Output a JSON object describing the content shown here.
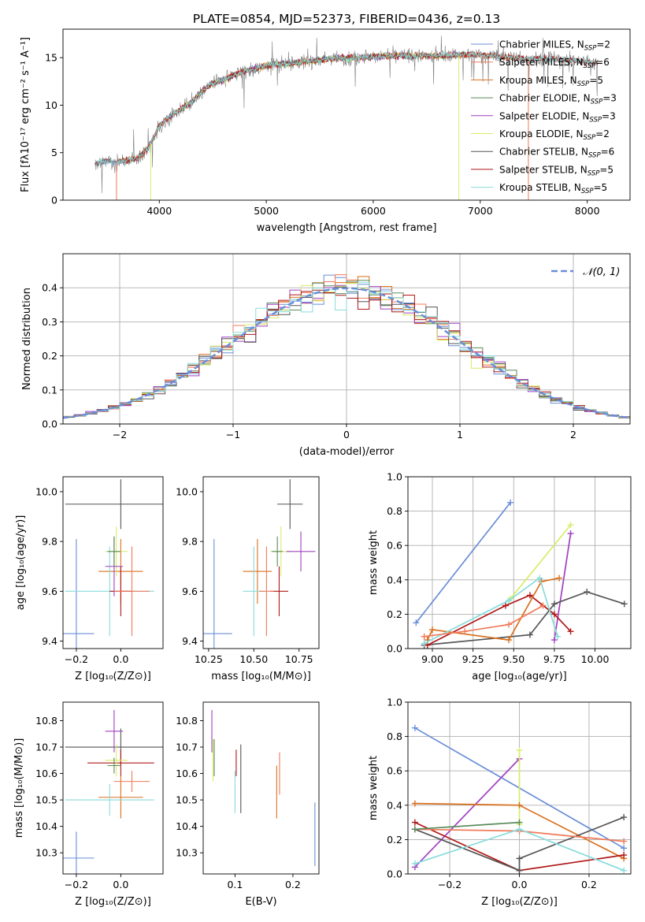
{
  "figure_title": "PLATE=0854, MJD=52373, FIBERID=0436, z=0.13",
  "colors": {
    "chabrier_miles": "#6a8ed8",
    "salpeter_miles": "#f07a5a",
    "kroupa_miles": "#d9701e",
    "chabrier_elodie": "#5a8a5a",
    "salpeter_elodie": "#a040c0",
    "kroupa_elodie": "#d8ec6a",
    "chabrier_stelib": "#555555",
    "salpeter_stelib": "#b01818",
    "kroupa_stelib": "#88dcdc",
    "normal": "#6a8ed8",
    "data_spectrum": "#7f7f7f",
    "grid": "#b0b0b0"
  },
  "chart_data": [
    {
      "id": "spectrum",
      "type": "line",
      "xlabel": "wavelength [Angstrom, rest frame]",
      "ylabel": "Flux [fλ10⁻¹⁷ erg cm⁻² s⁻¹ A⁻¹]",
      "xlim": [
        3100,
        8400
      ],
      "ylim": [
        0,
        18
      ],
      "xticks": [
        4000,
        5000,
        6000,
        7000,
        8000
      ],
      "yticks": [
        0,
        5,
        10,
        15
      ],
      "grid": false,
      "legend_placement": "upper-right",
      "continuum": {
        "x": [
          3400,
          3500,
          3600,
          3700,
          3800,
          3900,
          4000,
          4100,
          4200,
          4300,
          4400,
          4500,
          4600,
          4700,
          4800,
          4900,
          5000,
          5200,
          5400,
          5600,
          5800,
          6000,
          6200,
          6400,
          6600,
          6800,
          7000,
          7200,
          7400,
          7600,
          7800,
          8000,
          8100
        ],
        "y": [
          3.8,
          4.2,
          4.0,
          4.2,
          4.4,
          5.5,
          7.8,
          8.8,
          9.6,
          10.3,
          11.5,
          12.3,
          12.6,
          13.2,
          13.6,
          13.8,
          14.2,
          14.4,
          14.6,
          14.9,
          15.0,
          15.1,
          15.2,
          15.2,
          15.2,
          15.3,
          15.3,
          15.1,
          14.9,
          14.9,
          14.8,
          14.6,
          14.5
        ]
      },
      "series": [
        {
          "name": "Chabrier MILES, Nₛₛₚ=2",
          "label_main": "Chabrier MILES, N",
          "label_sub": "SSP",
          "label_tail": "=2",
          "color_key": "chabrier_miles",
          "x_range": [
            3400,
            7400
          ]
        },
        {
          "name": "Salpeter MILES, Nₛₛₚ=6",
          "label_main": "Salpeter MILES, N",
          "label_sub": "SSP",
          "label_tail": "=6",
          "color_key": "salpeter_miles",
          "x_range": [
            3600,
            7450
          ]
        },
        {
          "name": "Kroupa MILES, Nₛₛₚ=5",
          "label_main": "Kroupa MILES, N",
          "label_sub": "SSP",
          "label_tail": "=5",
          "color_key": "kroupa_miles",
          "x_range": [
            3600,
            7400
          ]
        },
        {
          "name": "Chabrier ELODIE, Nₛₛₚ=3",
          "label_main": "Chabrier ELODIE, N",
          "label_sub": "SSP",
          "label_tail": "=3",
          "color_key": "chabrier_elodie",
          "x_range": [
            3900,
            6800
          ]
        },
        {
          "name": "Salpeter ELODIE, Nₛₛₚ=3",
          "label_main": "Salpeter ELODIE, N",
          "label_sub": "SSP",
          "label_tail": "=3",
          "color_key": "salpeter_elodie",
          "x_range": [
            3900,
            6800
          ]
        },
        {
          "name": "Kroupa ELODIE, Nₛₛₚ=2",
          "label_main": "Kroupa ELODIE, N",
          "label_sub": "SSP",
          "label_tail": "=2",
          "color_key": "kroupa_elodie",
          "x_range": [
            3900,
            6800
          ]
        },
        {
          "name": "Chabrier STELIB, Nₛₛₚ=6",
          "label_main": "Chabrier STELIB, N",
          "label_sub": "SSP",
          "label_tail": "=6",
          "color_key": "chabrier_stelib",
          "x_range": [
            3400,
            8100
          ]
        },
        {
          "name": "Salpeter STELIB, Nₛₛₚ=5",
          "label_main": "Salpeter STELIB, N",
          "label_sub": "SSP",
          "label_tail": "=5",
          "color_key": "salpeter_stelib",
          "x_range": [
            3400,
            8100
          ]
        },
        {
          "name": "Kroupa STELIB, Nₛₛₚ=5",
          "label_main": "Kroupa STELIB, N",
          "label_sub": "SSP",
          "label_tail": "=5",
          "color_key": "kroupa_stelib",
          "x_range": [
            3400,
            8100
          ]
        }
      ]
    },
    {
      "id": "residuals",
      "type": "line",
      "xlabel": "(data-model)/error",
      "ylabel": "Normed distribution",
      "xlim": [
        -2.5,
        2.5
      ],
      "ylim": [
        0,
        0.5
      ],
      "xticks": [
        -2,
        -1,
        0,
        1,
        2
      ],
      "xtick_labels": [
        "−2",
        "−1",
        "0",
        "1",
        "2"
      ],
      "yticks": [
        0.0,
        0.1,
        0.2,
        0.3,
        0.4
      ],
      "ytick_labels": [
        "0.0",
        "0.1",
        "0.2",
        "0.3",
        "0.4"
      ],
      "grid": true,
      "legend_placement": "upper-right",
      "legend": [
        "𝒩(0, 1)"
      ],
      "bin_width": 0.1,
      "gaussian": {
        "mean": 0,
        "sigma": 1,
        "style": "dashed"
      }
    },
    {
      "id": "age_vs_Z",
      "type": "scatter",
      "xlabel": "Z [log₁₀(Z/Z⊙)]",
      "ylabel": "age  [log₁₀(age/yr)]",
      "xlim": [
        -0.26,
        0.19
      ],
      "ylim": [
        9.37,
        10.06
      ],
      "xticks": [
        -0.2,
        0.0
      ],
      "xtick_labels": [
        "−0.2",
        "0.0"
      ],
      "yticks": [
        9.4,
        9.6,
        9.8,
        10.0
      ],
      "ytick_labels": [
        "9.4",
        "9.6",
        "9.8",
        "10.0"
      ],
      "points": [
        {
          "color_key": "chabrier_stelib",
          "x": 0.0,
          "xerr": 0.25,
          "y": 9.95,
          "yerr": 0.1
        },
        {
          "color_key": "chabrier_miles",
          "x": -0.2,
          "xerr": 0.08,
          "y": 9.43,
          "yerr": 0.38
        },
        {
          "color_key": "kroupa_miles",
          "x": 0.0,
          "xerr": 0.1,
          "y": 9.68,
          "yerr": 0.13
        },
        {
          "color_key": "kroupa_stelib",
          "x": -0.05,
          "xerr": 0.2,
          "y": 9.6,
          "yerr": 0.18
        },
        {
          "color_key": "salpeter_stelib",
          "x": 0.0,
          "xerr": 0.05,
          "y": 9.6,
          "yerr": 0.1
        },
        {
          "color_key": "kroupa_elodie",
          "x": -0.02,
          "xerr": 0.05,
          "y": 9.76,
          "yerr": 0.1
        },
        {
          "color_key": "salpeter_elodie",
          "x": -0.03,
          "xerr": 0.04,
          "y": 9.7,
          "yerr": 0.12
        },
        {
          "color_key": "salpeter_miles",
          "x": 0.05,
          "xerr": 0.08,
          "y": 9.6,
          "yerr": 0.18
        },
        {
          "color_key": "chabrier_elodie",
          "x": -0.03,
          "xerr": 0.03,
          "y": 9.76,
          "yerr": 0.06
        }
      ]
    },
    {
      "id": "age_vs_mass",
      "type": "scatter",
      "xlabel": "mass [log₁₀(M/M⊙)]",
      "ylabel": "",
      "xlim": [
        10.22,
        10.86
      ],
      "ylim": [
        9.37,
        10.06
      ],
      "xticks": [
        10.25,
        10.5,
        10.75
      ],
      "xtick_labels": [
        "10.25",
        "10.50",
        "10.75"
      ],
      "yticks": [
        9.4,
        9.6,
        9.8,
        10.0
      ],
      "ytick_labels": [
        "9.4",
        "9.6",
        "9.8",
        "10.0"
      ],
      "points": [
        {
          "color_key": "chabrier_stelib",
          "x": 10.7,
          "xerr": 0.07,
          "y": 9.95,
          "yerr": 0.1
        },
        {
          "color_key": "chabrier_miles",
          "x": 10.28,
          "xerr": 0.1,
          "y": 9.43,
          "yerr": 0.38
        },
        {
          "color_key": "kroupa_miles",
          "x": 10.52,
          "xerr": 0.08,
          "y": 9.68,
          "yerr": 0.13
        },
        {
          "color_key": "kroupa_stelib",
          "x": 10.5,
          "xerr": 0.06,
          "y": 9.6,
          "yerr": 0.18
        },
        {
          "color_key": "salpeter_stelib",
          "x": 10.64,
          "xerr": 0.05,
          "y": 9.6,
          "yerr": 0.1
        },
        {
          "color_key": "kroupa_elodie",
          "x": 10.65,
          "xerr": 0.06,
          "y": 9.76,
          "yerr": 0.1
        },
        {
          "color_key": "salpeter_elodie",
          "x": 10.76,
          "xerr": 0.08,
          "y": 9.76,
          "yerr": 0.08
        },
        {
          "color_key": "salpeter_miles",
          "x": 10.57,
          "xerr": 0.04,
          "y": 9.6,
          "yerr": 0.18
        },
        {
          "color_key": "chabrier_elodie",
          "x": 10.63,
          "xerr": 0.03,
          "y": 9.76,
          "yerr": 0.06
        }
      ]
    },
    {
      "id": "massweight_vs_age",
      "type": "line",
      "xlabel": "age  [log₁₀(age/yr)]",
      "ylabel": "mass weight",
      "xlim": [
        8.85,
        10.22
      ],
      "ylim": [
        0,
        1.0
      ],
      "xticks": [
        9.0,
        9.25,
        9.5,
        9.75,
        10.0
      ],
      "xtick_labels": [
        "9.00",
        "9.25",
        "9.50",
        "9.75",
        "10.00"
      ],
      "yticks": [
        0.0,
        0.2,
        0.4,
        0.6,
        0.8,
        1.0
      ],
      "ytick_labels": [
        "0.0",
        "0.2",
        "0.4",
        "0.6",
        "0.8",
        "1.0"
      ],
      "grid": true,
      "series": [
        {
          "color_key": "chabrier_miles",
          "x": [
            8.9,
            9.48
          ],
          "y": [
            0.15,
            0.85
          ]
        },
        {
          "color_key": "kroupa_elodie",
          "x": [
            9.48,
            9.85
          ],
          "y": [
            0.29,
            0.72
          ]
        },
        {
          "color_key": "salpeter_elodie",
          "x": [
            9.75,
            9.85
          ],
          "y": [
            0.05,
            0.67
          ]
        },
        {
          "color_key": "chabrier_stelib",
          "x": [
            8.95,
            9.6,
            9.75,
            9.95,
            10.18
          ],
          "y": [
            0.02,
            0.08,
            0.26,
            0.33,
            0.26
          ]
        },
        {
          "color_key": "salpeter_stelib",
          "x": [
            8.97,
            9.45,
            9.6,
            9.75,
            9.85
          ],
          "y": [
            0.02,
            0.25,
            0.31,
            0.2,
            0.1
          ]
        },
        {
          "color_key": "kroupa_miles",
          "x": [
            8.97,
            9.0,
            9.47,
            9.67,
            9.78
          ],
          "y": [
            0.05,
            0.11,
            0.05,
            0.39,
            0.41
          ]
        },
        {
          "color_key": "kroupa_stelib",
          "x": [
            8.95,
            9.47,
            9.66,
            9.77
          ],
          "y": [
            0.03,
            0.28,
            0.41,
            0.07
          ]
        },
        {
          "color_key": "salpeter_miles",
          "x": [
            8.95,
            9.2,
            9.47,
            9.68
          ],
          "y": [
            0.07,
            0.1,
            0.14,
            0.25
          ]
        }
      ]
    },
    {
      "id": "mass_vs_Z",
      "type": "scatter",
      "xlabel": "Z [log₁₀(Z/Z⊙)]",
      "ylabel": "mass [log₁₀(M/M⊙)]",
      "xlim": [
        -0.26,
        0.19
      ],
      "ylim": [
        10.22,
        10.87
      ],
      "xticks": [
        -0.2,
        0.0
      ],
      "xtick_labels": [
        "−0.2",
        "0.0"
      ],
      "yticks": [
        10.3,
        10.4,
        10.5,
        10.6,
        10.7,
        10.8
      ],
      "ytick_labels": [
        "10.3",
        "10.4",
        "10.5",
        "10.6",
        "10.7",
        "10.8"
      ],
      "points": [
        {
          "color_key": "chabrier_stelib",
          "x": 0.0,
          "xerr": 0.25,
          "y": 10.7,
          "yerr": 0.07
        },
        {
          "color_key": "chabrier_miles",
          "x": -0.2,
          "xerr": 0.08,
          "y": 10.28,
          "yerr": 0.1
        },
        {
          "color_key": "kroupa_miles",
          "x": 0.0,
          "xerr": 0.1,
          "y": 10.51,
          "yerr": 0.08
        },
        {
          "color_key": "kroupa_stelib",
          "x": -0.05,
          "xerr": 0.2,
          "y": 10.5,
          "yerr": 0.06
        },
        {
          "color_key": "salpeter_stelib",
          "x": 0.0,
          "xerr": 0.15,
          "y": 10.64,
          "yerr": 0.05
        },
        {
          "color_key": "kroupa_elodie",
          "x": -0.02,
          "xerr": 0.05,
          "y": 10.65,
          "yerr": 0.06
        },
        {
          "color_key": "salpeter_elodie",
          "x": -0.03,
          "xerr": 0.04,
          "y": 10.76,
          "yerr": 0.08
        },
        {
          "color_key": "salpeter_miles",
          "x": 0.05,
          "xerr": 0.08,
          "y": 10.57,
          "yerr": 0.04
        },
        {
          "color_key": "chabrier_elodie",
          "x": -0.03,
          "xerr": 0.03,
          "y": 10.63,
          "yerr": 0.03
        }
      ]
    },
    {
      "id": "mass_vs_ebv",
      "type": "scatter",
      "xlabel": "E(B-V)",
      "ylabel": "",
      "xlim": [
        0.045,
        0.245
      ],
      "ylim": [
        10.22,
        10.87
      ],
      "xticks": [
        0.1,
        0.2
      ],
      "xtick_labels": [
        "0.1",
        "0.2"
      ],
      "yticks": [
        10.3,
        10.4,
        10.5,
        10.6,
        10.7,
        10.8
      ],
      "ytick_labels": [
        "10.3",
        "10.4",
        "10.5",
        "10.6",
        "10.7",
        "10.8"
      ],
      "points": [
        {
          "color_key": "salpeter_elodie",
          "x": 0.06,
          "y": 10.76,
          "yerr": 0.08
        },
        {
          "color_key": "kroupa_elodie",
          "x": 0.062,
          "y": 10.65,
          "yerr": 0.08
        },
        {
          "color_key": "chabrier_elodie",
          "x": 0.064,
          "y": 10.66,
          "yerr": 0.07
        },
        {
          "color_key": "kroupa_stelib",
          "x": 0.1,
          "y": 10.53,
          "yerr": 0.08
        },
        {
          "color_key": "chabrier_stelib",
          "x": 0.11,
          "y": 10.58,
          "yerr": 0.13
        },
        {
          "color_key": "salpeter_stelib",
          "x": 0.102,
          "y": 10.64,
          "yerr": 0.05
        },
        {
          "color_key": "kroupa_miles",
          "x": 0.172,
          "y": 10.53,
          "yerr": 0.1
        },
        {
          "color_key": "salpeter_miles",
          "x": 0.177,
          "y": 10.6,
          "yerr": 0.08
        },
        {
          "color_key": "chabrier_miles",
          "x": 0.238,
          "y": 10.37,
          "yerr": 0.12
        }
      ]
    },
    {
      "id": "massweight_vs_Z",
      "type": "line",
      "xlabel": "Z [log₁₀(Z/Z⊙)]",
      "ylabel": "mass weight",
      "xlim": [
        -0.32,
        0.32
      ],
      "ylim": [
        0,
        1.0
      ],
      "xticks": [
        -0.2,
        0.0,
        0.2
      ],
      "xtick_labels": [
        "−0.2",
        "0.0",
        "0.2"
      ],
      "yticks": [
        0.0,
        0.2,
        0.4,
        0.6,
        0.8,
        1.0
      ],
      "ytick_labels": [
        "0.0",
        "0.2",
        "0.4",
        "0.6",
        "0.8",
        "1.0"
      ],
      "grid": true,
      "series": [
        {
          "color_key": "chabrier_miles",
          "x": [
            -0.3,
            0.3
          ],
          "y": [
            0.85,
            0.15
          ]
        },
        {
          "color_key": "salpeter_elodie",
          "x": [
            -0.3,
            0.0
          ],
          "y": [
            0.04,
            0.67
          ]
        },
        {
          "color_key": "kroupa_elodie",
          "x": [
            0.0,
            0.0
          ],
          "y": [
            0.72,
            0.29
          ]
        },
        {
          "color_key": "kroupa_miles",
          "x": [
            -0.3,
            0.0,
            0.3
          ],
          "y": [
            0.41,
            0.4,
            0.09
          ]
        },
        {
          "color_key": "salpeter_stelib",
          "x": [
            -0.3,
            0.0,
            0.3
          ],
          "y": [
            0.3,
            0.02,
            0.11
          ]
        },
        {
          "color_key": "chabrier_stelib",
          "x": [
            -0.3,
            0.0,
            0.0,
            0.3
          ],
          "y": [
            0.26,
            0.02,
            0.09,
            0.33
          ]
        },
        {
          "color_key": "salpeter_miles",
          "x": [
            -0.3,
            0.0,
            0.3
          ],
          "y": [
            0.26,
            0.25,
            0.19
          ]
        },
        {
          "color_key": "kroupa_stelib",
          "x": [
            -0.3,
            0.0,
            0.3
          ],
          "y": [
            0.06,
            0.26,
            0.02
          ]
        },
        {
          "color_key": "chabrier_elodie",
          "x": [
            -0.3,
            0.0
          ],
          "y": [
            0.26,
            0.3
          ]
        }
      ]
    }
  ]
}
